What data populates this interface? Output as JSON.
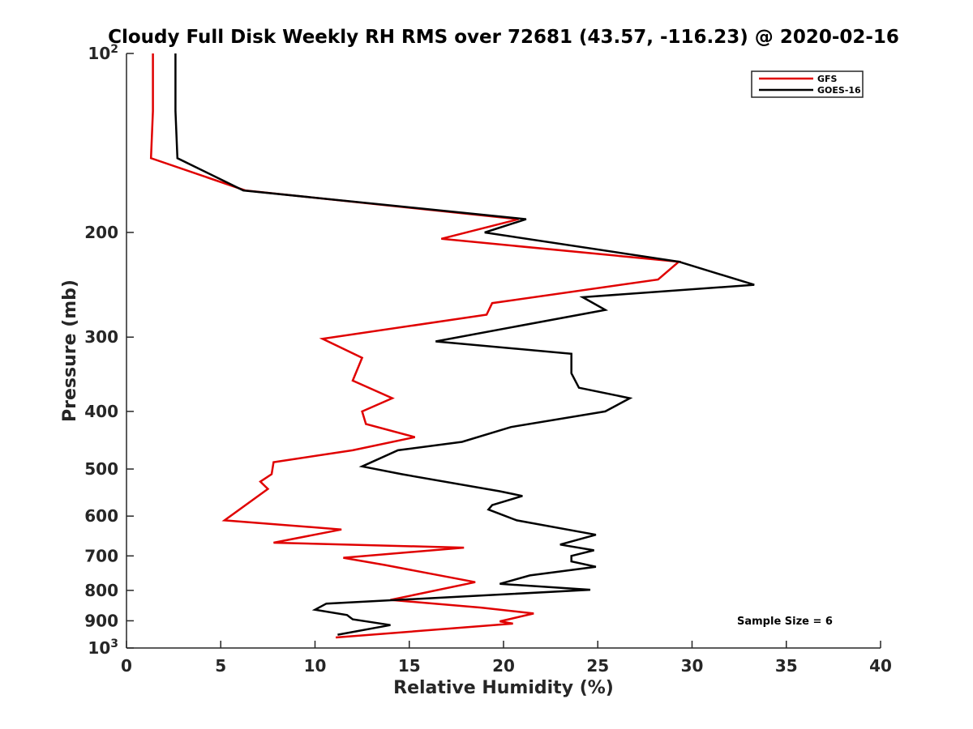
{
  "chart_data": {
    "type": "line",
    "title": "Cloudy Full Disk Weekly RH RMS over 72681 (43.57, -116.23) @ 2020-02-16",
    "xlabel": "Relative Humidity (%)",
    "ylabel": "Pressure (mb)",
    "xlim": [
      0,
      40
    ],
    "ylim": [
      100,
      1000
    ],
    "y_scale": "log",
    "y_reversed": true,
    "grid": false,
    "legend_position": "top-right",
    "x_ticks": [
      0,
      5,
      10,
      15,
      20,
      25,
      30,
      35,
      40
    ],
    "x_tick_labels": [
      "0",
      "5",
      "10",
      "15",
      "20",
      "25",
      "30",
      "35",
      "40"
    ],
    "y_ticks": [
      100,
      200,
      300,
      400,
      500,
      600,
      700,
      800,
      900,
      1000
    ],
    "y_tick_labels": [
      {
        "base": "10",
        "exp": "2"
      },
      {
        "base": "200",
        "exp": ""
      },
      {
        "base": "300",
        "exp": ""
      },
      {
        "base": "400",
        "exp": ""
      },
      {
        "base": "500",
        "exp": ""
      },
      {
        "base": "600",
        "exp": ""
      },
      {
        "base": "700",
        "exp": ""
      },
      {
        "base": "800",
        "exp": ""
      },
      {
        "base": "900",
        "exp": ""
      },
      {
        "base": "10",
        "exp": "3"
      }
    ],
    "annotation": "Sample Size = 6",
    "series": [
      {
        "name": "GFS",
        "color": "#e00000",
        "points": [
          [
            1.4,
            100
          ],
          [
            1.4,
            125
          ],
          [
            1.3,
            150
          ],
          [
            6.3,
            170
          ],
          [
            20.8,
            190
          ],
          [
            16.7,
            205
          ],
          [
            29.3,
            224
          ],
          [
            28.2,
            240
          ],
          [
            19.4,
            263
          ],
          [
            19.1,
            275
          ],
          [
            10.4,
            302
          ],
          [
            12.5,
            325
          ],
          [
            12.0,
            355
          ],
          [
            14.1,
            380
          ],
          [
            12.5,
            400
          ],
          [
            12.7,
            420
          ],
          [
            15.3,
            442
          ],
          [
            12.0,
            465
          ],
          [
            7.8,
            487
          ],
          [
            7.7,
            510
          ],
          [
            7.1,
            525
          ],
          [
            7.5,
            540
          ],
          [
            5.2,
            610
          ],
          [
            11.4,
            632
          ],
          [
            7.8,
            665
          ],
          [
            17.9,
            678
          ],
          [
            11.5,
            705
          ],
          [
            13.7,
            725
          ],
          [
            18.5,
            775
          ],
          [
            14.0,
            830
          ],
          [
            18.8,
            855
          ],
          [
            21.6,
            875
          ],
          [
            19.8,
            902
          ],
          [
            20.5,
            910
          ],
          [
            11.1,
            960
          ]
        ]
      },
      {
        "name": "GOES-16",
        "color": "#000000",
        "points": [
          [
            2.6,
            100
          ],
          [
            2.6,
            125
          ],
          [
            2.7,
            150
          ],
          [
            6.2,
            170
          ],
          [
            21.2,
            190
          ],
          [
            19.0,
            200
          ],
          [
            29.3,
            224
          ],
          [
            33.3,
            245
          ],
          [
            24.2,
            257
          ],
          [
            25.4,
            270
          ],
          [
            16.4,
            305
          ],
          [
            23.6,
            320
          ],
          [
            23.6,
            345
          ],
          [
            24.0,
            365
          ],
          [
            26.7,
            380
          ],
          [
            25.4,
            400
          ],
          [
            20.4,
            425
          ],
          [
            17.8,
            450
          ],
          [
            14.4,
            465
          ],
          [
            12.5,
            495
          ],
          [
            14.6,
            510
          ],
          [
            19.8,
            545
          ],
          [
            21.0,
            555
          ],
          [
            19.4,
            575
          ],
          [
            19.2,
            585
          ],
          [
            20.7,
            610
          ],
          [
            24.9,
            645
          ],
          [
            23.0,
            670
          ],
          [
            24.8,
            685
          ],
          [
            23.6,
            700
          ],
          [
            23.6,
            715
          ],
          [
            24.9,
            730
          ],
          [
            21.4,
            755
          ],
          [
            19.8,
            780
          ],
          [
            24.6,
            798
          ],
          [
            19.2,
            815
          ],
          [
            10.6,
            842
          ],
          [
            10.0,
            862
          ],
          [
            11.7,
            880
          ],
          [
            12.0,
            895
          ],
          [
            14.0,
            915
          ],
          [
            11.2,
            950
          ]
        ]
      }
    ]
  }
}
